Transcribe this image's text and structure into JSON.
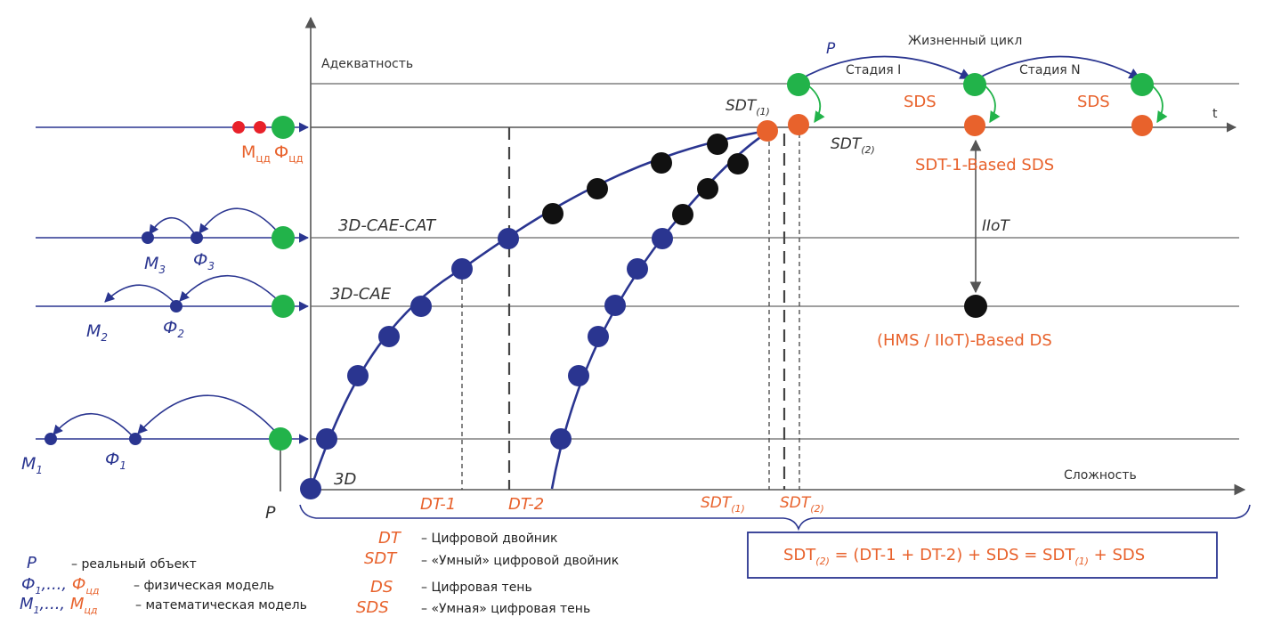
{
  "colors": {
    "navy": "#2a3590",
    "green": "#22b34a",
    "orange": "#e8622c",
    "red": "#e8212a",
    "black": "#111111",
    "line": "#555555"
  },
  "axes": {
    "y_label": "Адекватность",
    "x_label": "Сложность",
    "t_label": "t"
  },
  "top": {
    "lifecycle": "Жизненный цикл",
    "p": "P",
    "stage1": "Стадия I",
    "stageN": "Стадия N",
    "sds1": "SDS",
    "sds2": "SDS",
    "sdt1": "SDT",
    "sdt1_sub": "(1)",
    "sdt2": "SDT",
    "sdt2_sub": "(2)",
    "sdt_based": "SDT-1-Based SDS",
    "iiot": "IIoT",
    "hms": "(HMS / IIoT)-Based DS"
  },
  "levels": {
    "l1": "3D-CAE-CAT",
    "l2": "3D-CAE",
    "l3": "3D"
  },
  "left": {
    "m_cd": "М",
    "m_cd_sub": "цд",
    "f_cd": "Ф",
    "f_cd_sub": "цд",
    "m3": "M",
    "m3_sub": "3",
    "f3": "Ф",
    "f3_sub": "3",
    "m2": "M",
    "m2_sub": "2",
    "f2": "Ф",
    "f2_sub": "2",
    "m1": "M",
    "m1_sub": "1",
    "f1": "Ф",
    "f1_sub": "1",
    "p": "P"
  },
  "bottom": {
    "dt1": "DT-1",
    "dt2": "DT-2",
    "sdt1": "SDT",
    "sdt1_sub": "(1)",
    "sdt2": "SDT",
    "sdt2_sub": "(2)"
  },
  "formula": {
    "a": "SDT",
    "a_sub": "(2)",
    "b": " = (DT-1 + DT-2) + SDS = SDT",
    "b_sub": "(1)",
    "c": " + SDS"
  },
  "legend_left": [
    {
      "sym": "P",
      "text": "– реальный объект"
    },
    {
      "sym": "Ф1,..., Фцд",
      "text": "– физическая модель"
    },
    {
      "sym": "M1,..., Mцд",
      "text": "– математическая модель"
    }
  ],
  "legend_abbr": [
    {
      "sym": "DT",
      "text": "– Цифровой двойник"
    },
    {
      "sym": "SDT",
      "text": "– «Умный» цифровой двойник"
    },
    {
      "sym": "DS",
      "text": "– Цифровая тень"
    },
    {
      "sym": "SDS",
      "text": "– «Умная» цифровая тень"
    }
  ]
}
